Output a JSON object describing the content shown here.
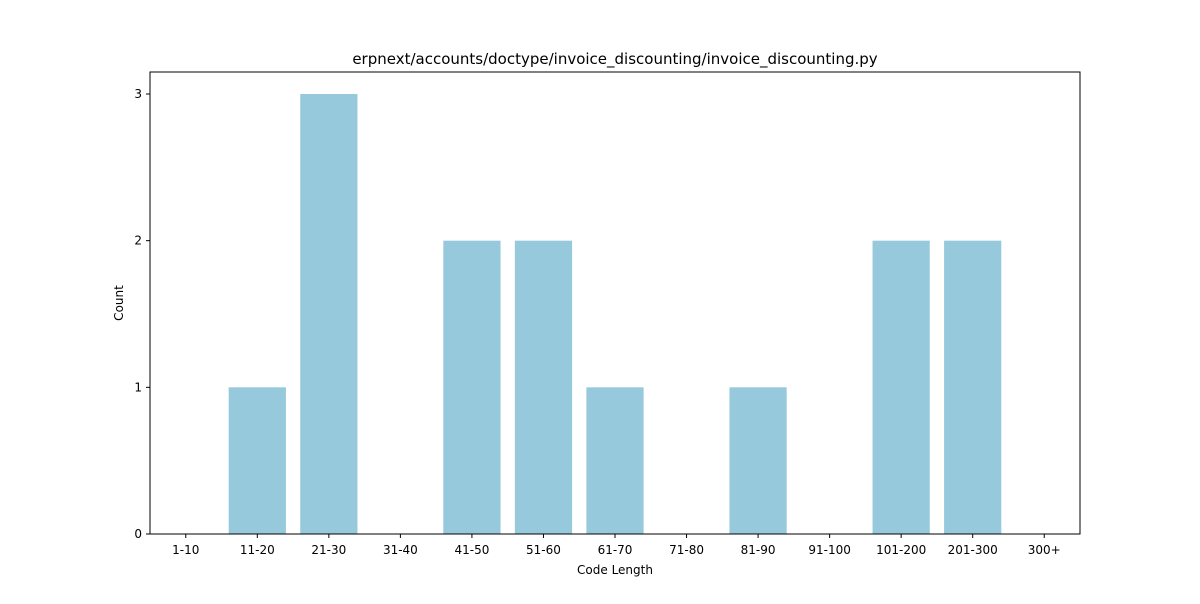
{
  "chart_data": {
    "type": "bar",
    "title": "erpnext/accounts/doctype/invoice_discounting/invoice_discounting.py",
    "xlabel": "Code Length",
    "ylabel": "Count",
    "categories": [
      "1-10",
      "11-20",
      "21-30",
      "31-40",
      "41-50",
      "51-60",
      "61-70",
      "71-80",
      "81-90",
      "91-100",
      "101-200",
      "201-300",
      "300+"
    ],
    "values": [
      0,
      1,
      3,
      0,
      2,
      2,
      1,
      0,
      1,
      0,
      2,
      2,
      0
    ],
    "ylim": [
      0,
      3.15
    ],
    "yticks": [
      0,
      1,
      2,
      3
    ],
    "grid": false,
    "bar_color": "#96c9dc"
  }
}
